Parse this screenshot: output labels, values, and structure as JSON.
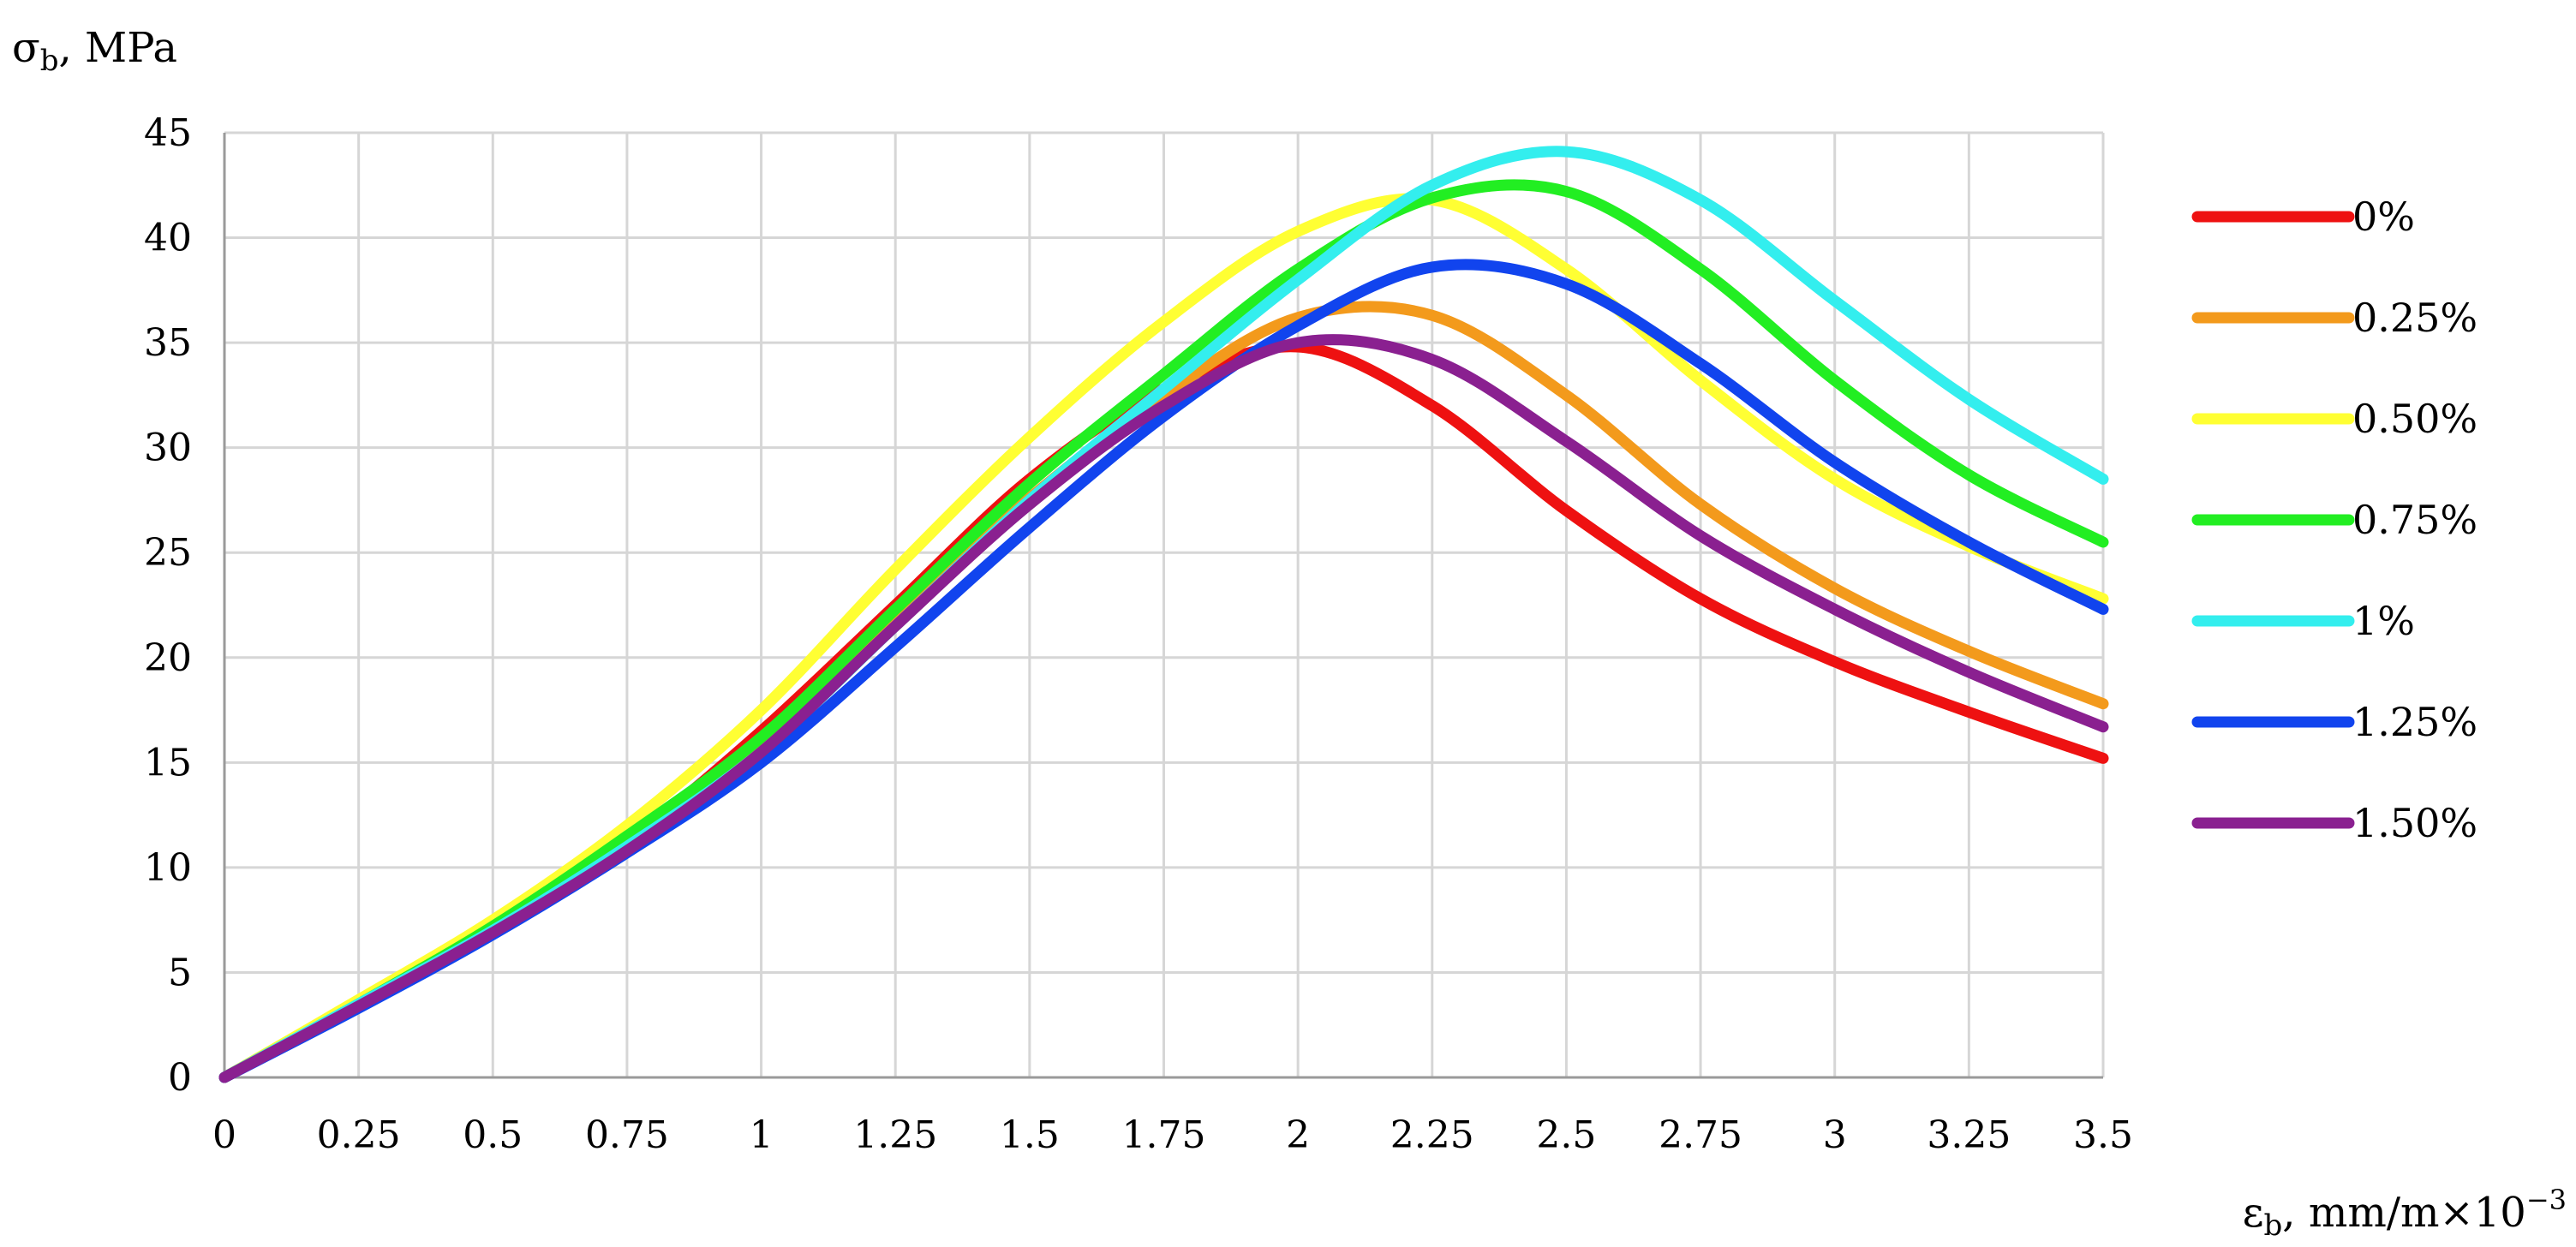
{
  "chart_data": {
    "type": "line",
    "title": "",
    "ylabel": {
      "main": "σ",
      "sub": "b",
      "rest": ", MPa"
    },
    "xlabel": {
      "main": "ε",
      "sub": "b",
      "rest": ", mm/m×10",
      "sup": "−3"
    },
    "xlim": [
      0,
      3.5
    ],
    "ylim": [
      0,
      45
    ],
    "x_ticks": [
      "0",
      "0.25",
      "0.5",
      "0.75",
      "1",
      "1.25",
      "1.5",
      "1.75",
      "2",
      "2.25",
      "2.5",
      "2.75",
      "3",
      "3.25",
      "3.5"
    ],
    "y_ticks": [
      "0",
      "5",
      "10",
      "15",
      "20",
      "25",
      "30",
      "35",
      "40",
      "45"
    ],
    "grid": true,
    "legend_position": "right",
    "x": [
      0,
      0.25,
      0.5,
      0.75,
      1,
      1.25,
      1.5,
      1.75,
      2,
      2.25,
      2.5,
      2.75,
      3,
      3.25,
      3.5
    ],
    "series": [
      {
        "name": "0%",
        "color": "#ee1111",
        "values": [
          0,
          3.5,
          7.0,
          11.2,
          16.5,
          22.5,
          28.5,
          32.8,
          34.8,
          32.0,
          27.0,
          22.8,
          19.8,
          17.4,
          15.2
        ]
      },
      {
        "name": "0.25%",
        "color": "#f39a1c",
        "values": [
          0,
          3.5,
          7.0,
          11.0,
          16.0,
          22.0,
          27.6,
          32.5,
          36.2,
          36.3,
          32.5,
          27.3,
          23.3,
          20.3,
          17.8
        ]
      },
      {
        "name": "0.50%",
        "color": "#ffff33",
        "values": [
          0,
          3.7,
          7.5,
          12.0,
          17.5,
          24.2,
          30.5,
          36.0,
          40.3,
          41.8,
          38.5,
          33.2,
          28.5,
          25.3,
          22.8
        ]
      },
      {
        "name": "0.75%",
        "color": "#22ee22",
        "values": [
          0,
          3.5,
          7.2,
          11.5,
          16.2,
          22.3,
          28.3,
          33.5,
          38.5,
          41.9,
          42.2,
          38.5,
          33.2,
          28.7,
          25.5
        ]
      },
      {
        "name": "1%",
        "color": "#33eeee",
        "values": [
          0,
          3.5,
          7.0,
          11.0,
          15.5,
          21.5,
          27.5,
          32.8,
          38.0,
          42.5,
          44.1,
          41.8,
          37.0,
          32.3,
          28.5
        ]
      },
      {
        "name": "1.25%",
        "color": "#1144ee",
        "values": [
          0,
          3.3,
          6.8,
          10.7,
          15.0,
          20.5,
          26.2,
          31.5,
          35.8,
          38.6,
          37.8,
          34.0,
          29.3,
          25.5,
          22.3
        ]
      },
      {
        "name": "1.50%",
        "color": "#8a2090",
        "values": [
          0,
          3.4,
          6.9,
          10.8,
          15.5,
          21.5,
          27.3,
          32.0,
          35.0,
          34.2,
          30.3,
          25.8,
          22.3,
          19.3,
          16.7
        ]
      }
    ]
  }
}
